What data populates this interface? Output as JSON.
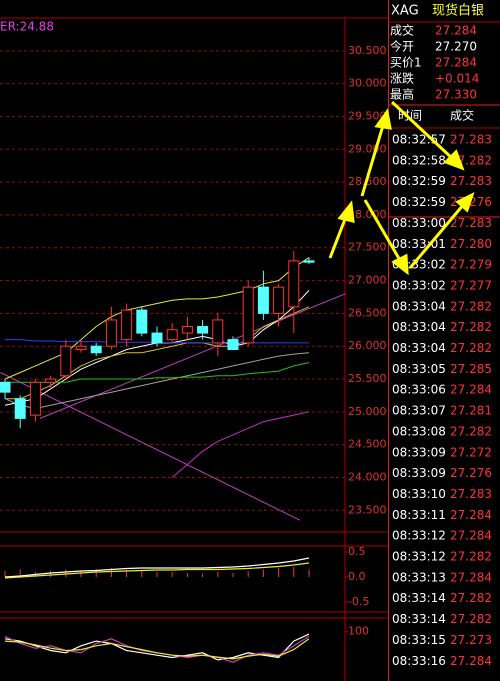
{
  "chart_data": [
    {
      "type": "candlestick",
      "annotation": "ER:24.88",
      "ylim": [
        23.2,
        31.0
      ],
      "yticks": [
        {
          "value": 23.5,
          "label": "23.500"
        },
        {
          "value": 24,
          "label": "24.000"
        },
        {
          "value": 24.5,
          "label": "24.500"
        },
        {
          "value": 25,
          "label": "25.000"
        },
        {
          "value": 25.5,
          "label": "25.500"
        },
        {
          "value": 26,
          "label": "26.000"
        },
        {
          "value": 26.5,
          "label": "26.500"
        },
        {
          "value": 27,
          "label": "27.000"
        },
        {
          "value": 27.5,
          "label": "27.500"
        },
        {
          "value": 28,
          "label": "28.000"
        },
        {
          "value": 28.5,
          "label": "28.500"
        },
        {
          "value": 29,
          "label": "29.000"
        },
        {
          "value": 29.5,
          "label": "29.500"
        },
        {
          "value": 30,
          "label": "30.000"
        },
        {
          "value": 30.5,
          "label": "30.500"
        }
      ],
      "grid": true,
      "up_color": "#ff3232",
      "down_color": "#54ffff",
      "open": [
        25.45,
        25.2,
        24.95,
        25.45,
        25.55,
        25.95,
        26.0,
        26.0,
        26.1,
        26.55,
        26.2,
        26.1,
        26.2,
        26.3,
        26.05,
        26.1,
        26.05,
        26.9,
        26.5,
        26.6,
        27.3
      ],
      "high": [
        25.5,
        25.25,
        25.5,
        25.55,
        26.1,
        26.1,
        26.05,
        26.6,
        26.65,
        26.6,
        26.3,
        26.35,
        26.45,
        26.4,
        26.5,
        26.15,
        27.0,
        27.15,
        26.95,
        27.45,
        27.35
      ],
      "low": [
        25.2,
        24.75,
        24.85,
        25.35,
        25.5,
        25.9,
        25.85,
        25.95,
        26.0,
        26.15,
        26.0,
        26.05,
        26.1,
        26.1,
        25.85,
        25.95,
        26.0,
        26.4,
        26.3,
        26.2,
        27.25
      ],
      "close": [
        25.3,
        24.9,
        25.45,
        25.5,
        26.0,
        26.0,
        25.9,
        26.4,
        26.55,
        26.2,
        26.05,
        26.25,
        26.3,
        26.2,
        26.4,
        25.95,
        26.9,
        26.5,
        26.9,
        27.3,
        27.28
      ],
      "series": [
        {
          "color": "#e8e830",
          "values": [
            25.5,
            25.6,
            25.7,
            25.8,
            25.9,
            26.1,
            26.3,
            26.45,
            26.55,
            26.6,
            26.65,
            26.7,
            26.72,
            26.72,
            26.75,
            26.8,
            26.85,
            26.95,
            27.0,
            27.2,
            27.35
          ]
        },
        {
          "color": "#ffffff",
          "values": [
            25.1,
            25.15,
            25.2,
            25.35,
            25.5,
            25.65,
            25.75,
            25.85,
            25.95,
            26.0,
            26.05,
            26.05,
            26.1,
            26.15,
            26.1,
            26.0,
            26.05,
            26.25,
            26.4,
            26.6,
            26.85
          ]
        },
        {
          "color": "#d8c020",
          "values": [
            25.2,
            25.2,
            25.3,
            25.4,
            25.55,
            25.7,
            25.8,
            25.85,
            25.9,
            25.9,
            25.95,
            26.0,
            26.05,
            26.05,
            26.0,
            26.0,
            26.1,
            26.3,
            26.4,
            26.5,
            26.6
          ]
        },
        {
          "color": "#a0a0a0",
          "values": [
            25.2,
            25.1,
            25.05,
            25.1,
            25.15,
            25.2,
            25.25,
            25.3,
            25.35,
            25.4,
            25.45,
            25.5,
            25.55,
            25.6,
            25.65,
            25.7,
            25.75,
            25.8,
            25.85,
            25.88,
            25.9
          ]
        },
        {
          "color": "#20c020",
          "values": [
            25.45,
            25.45,
            25.45,
            25.45,
            25.45,
            25.5,
            25.5,
            25.5,
            25.5,
            25.5,
            25.52,
            25.52,
            25.53,
            25.53,
            25.55,
            25.55,
            25.58,
            25.6,
            25.62,
            25.7,
            25.75
          ]
        },
        {
          "color": "#2040ff",
          "values": [
            26.1,
            26.1,
            26.08,
            26.08,
            26.07,
            26.07,
            26.07,
            26.06,
            26.06,
            26.06,
            26.06,
            26.05,
            26.05,
            26.05,
            26.05,
            26.05,
            26.05,
            26.05,
            26.05,
            26.05,
            26.05
          ]
        },
        {
          "color": "#c030c0",
          "values": [
            null,
            null,
            null,
            null,
            null,
            null,
            null,
            null,
            null,
            null,
            null,
            24.0,
            24.2,
            24.4,
            24.55,
            24.65,
            24.75,
            24.85,
            24.9,
            24.95,
            25.0
          ]
        }
      ],
      "trendlines": [
        {
          "color": "#c040c0",
          "x": [
            -0.3,
            19.4
          ],
          "values": [
            25.6,
            23.35
          ]
        },
        {
          "color": "#c040c0",
          "x": [
            2.3,
            22.4
          ],
          "values": [
            24.9,
            26.8
          ]
        }
      ]
    },
    {
      "type": "bar",
      "ylim": [
        -0.66,
        0.58
      ],
      "yticks": [
        {
          "value": -0.5,
          "label": "-0.5"
        },
        {
          "value": 0,
          "label": "0.0"
        },
        0.5
      ],
      "color": "#ff3232",
      "values": [
        0.12,
        0.15,
        0.1,
        0.13,
        0.15,
        0.12,
        0.16,
        0.18,
        0.15,
        0.12,
        0.1,
        0.1,
        0.08,
        0.07,
        0.1,
        0.08,
        0.12,
        0.15,
        0.18,
        0.2,
        0.15
      ],
      "series": [
        {
          "color": "#ffffff",
          "values": [
            0.0,
            0.02,
            0.05,
            0.08,
            0.1,
            0.12,
            0.13,
            0.15,
            0.17,
            0.18,
            0.18,
            0.18,
            0.18,
            0.18,
            0.19,
            0.2,
            0.22,
            0.25,
            0.28,
            0.32,
            0.38
          ]
        },
        {
          "color": "#e8e830",
          "values": [
            -0.02,
            0.0,
            0.02,
            0.04,
            0.06,
            0.08,
            0.1,
            0.11,
            0.12,
            0.13,
            0.14,
            0.14,
            0.15,
            0.15,
            0.15,
            0.16,
            0.17,
            0.19,
            0.21,
            0.24,
            0.28
          ]
        }
      ]
    },
    {
      "type": "line",
      "ylim": [
        -5,
        125
      ],
      "yticks": [
        100
      ],
      "series": [
        {
          "color": "#ffffff",
          "values": [
            85,
            80,
            70,
            60,
            55,
            70,
            80,
            75,
            60,
            55,
            50,
            45,
            50,
            55,
            40,
            45,
            55,
            50,
            45,
            80,
            95
          ]
        },
        {
          "color": "#c040c0",
          "values": [
            90,
            75,
            65,
            70,
            60,
            55,
            75,
            85,
            70,
            60,
            55,
            50,
            45,
            50,
            45,
            35,
            50,
            55,
            50,
            70,
            90
          ]
        },
        {
          "color": "#e8e830",
          "values": [
            80,
            78,
            72,
            65,
            60,
            62,
            70,
            75,
            68,
            62,
            55,
            50,
            48,
            50,
            46,
            42,
            48,
            52,
            48,
            62,
            85
          ]
        }
      ]
    }
  ],
  "quote": {
    "symbol": "XAG",
    "name": "现货白银",
    "fields": [
      {
        "label": "成交",
        "value": "27.284"
      },
      {
        "label": "今开",
        "value": "27.270"
      },
      {
        "label": "买价1",
        "value": "27.284"
      },
      {
        "label": "涨跌",
        "value": "+0.014"
      },
      {
        "label": "最高",
        "value": "27.330"
      }
    ]
  },
  "trades": {
    "header": [
      "时间",
      "成交"
    ],
    "rows": [
      [
        "08:32:57",
        "27.283"
      ],
      [
        "08:32:58",
        "27.282"
      ],
      [
        "08:32:59",
        "27.283"
      ],
      [
        "08:32:59",
        "27.276"
      ],
      [
        "08:33:00",
        "27.283"
      ],
      [
        "08:33:01",
        "27.280"
      ],
      [
        "08:33:02",
        "27.279"
      ],
      [
        "08:33:02",
        "27.277"
      ],
      [
        "08:33:04",
        "27.282"
      ],
      [
        "08:33:04",
        "27.282"
      ],
      [
        "08:33:04",
        "27.282"
      ],
      [
        "08:33:05",
        "27.285"
      ],
      [
        "08:33:06",
        "27.284"
      ],
      [
        "08:33:07",
        "27.281"
      ],
      [
        "08:33:08",
        "27.282"
      ],
      [
        "08:33:09",
        "27.272"
      ],
      [
        "08:33:09",
        "27.276"
      ],
      [
        "08:33:10",
        "27.283"
      ],
      [
        "08:33:11",
        "27.284"
      ],
      [
        "08:33:12",
        "27.284"
      ],
      [
        "08:33:12",
        "27.282"
      ],
      [
        "08:33:13",
        "27.284"
      ],
      [
        "08:33:14",
        "27.282"
      ],
      [
        "08:33:14",
        "27.282"
      ],
      [
        "08:33:15",
        "27.273"
      ],
      [
        "08:33:16",
        "27.284"
      ]
    ]
  }
}
